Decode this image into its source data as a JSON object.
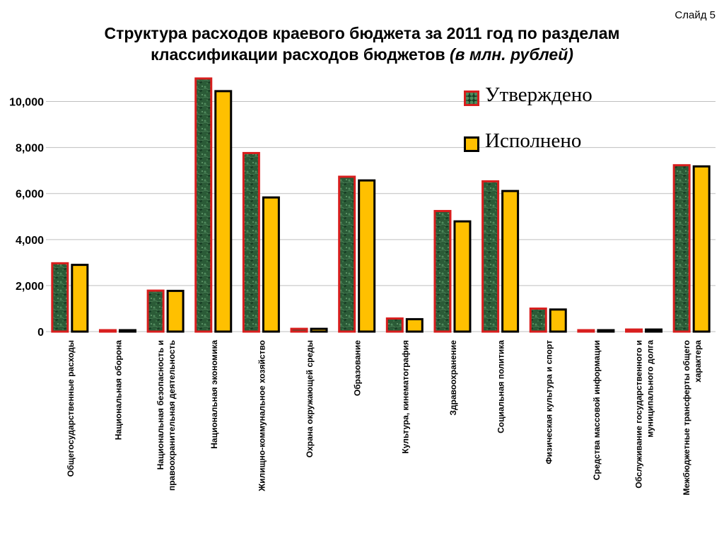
{
  "slide_label": "Слайд 5",
  "title": {
    "line1": "Структура расходов краевого бюджета за 2011 год по разделам",
    "line2": "классификации расходов бюджетов",
    "unit": "(в млн. рублей)"
  },
  "legend": {
    "approved": "Утверждено",
    "executed": "Исполнено"
  },
  "colors": {
    "approved_fill": "#2b5b37",
    "approved_border": "#d81e1e",
    "executed_fill": "#ffc000",
    "executed_border": "#000000",
    "gridline": "#bfbfbf"
  },
  "chart_data": {
    "type": "bar",
    "categories": [
      "Общегосударственные расходы",
      "Национальная оборона",
      "Национальная безопасность и правоохранительная деятельность",
      "Национальная экономика",
      "Жилищно-коммунальное хозяйство",
      "Охрана окружающей среды",
      "Образование",
      "Культура,  кинематография",
      "Здравоохранение",
      "Социальная политика",
      "Физическая культура и спорт",
      "Средства массовой информации",
      "Обслуживание государственного и муниципального долга",
      "Межбюджетные трансферты общего характера"
    ],
    "category_lines": [
      [
        "Общегосударственные расходы"
      ],
      [
        "Национальная оборона"
      ],
      [
        "Национальная безопасность и",
        "правоохранительная деятельность"
      ],
      [
        "Национальная экономика"
      ],
      [
        "Жилищно-коммунальное хозяйство"
      ],
      [
        "Охрана окружающей среды"
      ],
      [
        "Образование"
      ],
      [
        "Культура,  кинематография"
      ],
      [
        "Здравоохранение"
      ],
      [
        "Социальная политика"
      ],
      [
        "Физическая культура и спорт"
      ],
      [
        "Средства массовой информации"
      ],
      [
        "Обслуживание государственного и",
        "муниципального долга"
      ],
      [
        "Межбюджетные трансферты общего",
        "характера"
      ]
    ],
    "series": [
      {
        "name": "Утверждено",
        "values": [
          2970,
          30,
          1780,
          11000,
          7760,
          120,
          6730,
          570,
          5240,
          6530,
          1000,
          30,
          90,
          7230
        ]
      },
      {
        "name": "Исполнено",
        "values": [
          2900,
          30,
          1770,
          10450,
          5830,
          120,
          6570,
          540,
          4790,
          6110,
          960,
          30,
          90,
          7180
        ]
      }
    ],
    "ylim": [
      0,
      11000
    ],
    "yticks": [
      0,
      2000,
      4000,
      6000,
      8000,
      10000
    ],
    "ytick_labels": [
      "0",
      "2,000",
      "4,000",
      "6,000",
      "8,000",
      "10,000"
    ],
    "grid": true,
    "legend_position": "top-right"
  }
}
